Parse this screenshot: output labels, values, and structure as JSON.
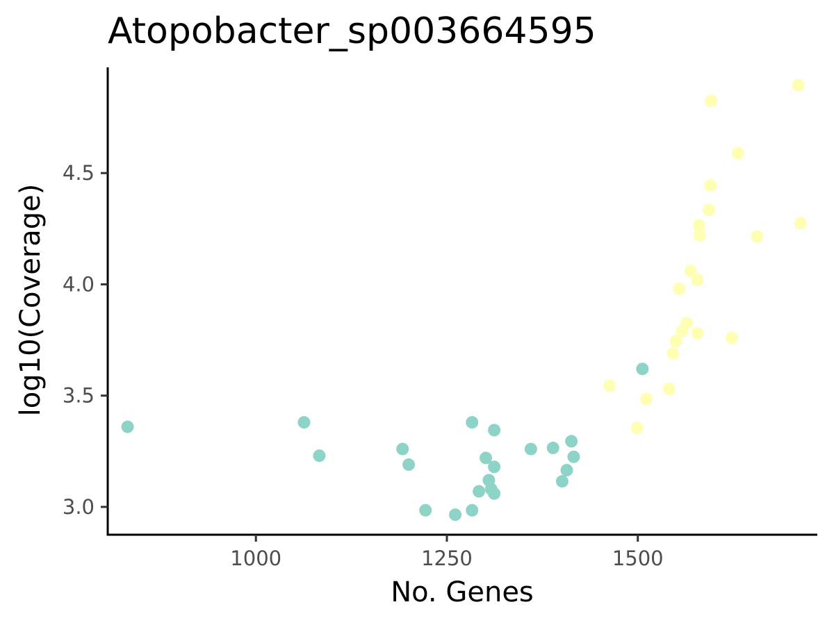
{
  "chart_data": {
    "type": "scatter",
    "title": "Atopobacter_sp003664595",
    "xlabel": "No. Genes",
    "ylabel": "log10(Coverage)",
    "xlim": [
      806,
      1735
    ],
    "ylim": [
      2.875,
      4.975
    ],
    "xticks": [
      1000,
      1250,
      1500
    ],
    "xtick_labels": [
      "1000",
      "1250",
      "1500"
    ],
    "yticks": [
      3.0,
      3.5,
      4.0,
      4.5
    ],
    "ytick_labels": [
      "3.0",
      "3.5",
      "4.0",
      "4.5"
    ],
    "grid": false,
    "legend": "none",
    "series": [
      {
        "color": "#8dd3c7",
        "points": [
          [
            832,
            3.36
          ],
          [
            1063,
            3.38
          ],
          [
            1083,
            3.23
          ],
          [
            1192,
            3.26
          ],
          [
            1200,
            3.19
          ],
          [
            1222,
            2.985
          ],
          [
            1261,
            2.965
          ],
          [
            1283,
            2.985
          ],
          [
            1283,
            3.38
          ],
          [
            1292,
            3.07
          ],
          [
            1301,
            3.22
          ],
          [
            1305,
            3.12
          ],
          [
            1308,
            3.08
          ],
          [
            1312,
            3.06
          ],
          [
            1312,
            3.18
          ],
          [
            1312,
            3.345
          ],
          [
            1360,
            3.26
          ],
          [
            1389,
            3.265
          ],
          [
            1401,
            3.115
          ],
          [
            1407,
            3.165
          ],
          [
            1413,
            3.295
          ],
          [
            1416,
            3.225
          ],
          [
            1506,
            3.62
          ]
        ]
      },
      {
        "color": "#ffffb3",
        "points": [
          [
            1463,
            3.545
          ],
          [
            1499,
            3.355
          ],
          [
            1511,
            3.485
          ],
          [
            1541,
            3.53
          ],
          [
            1546,
            3.69
          ],
          [
            1550,
            3.745
          ],
          [
            1554,
            3.98
          ],
          [
            1558,
            3.79
          ],
          [
            1564,
            3.825
          ],
          [
            1569,
            4.06
          ],
          [
            1578,
            4.02
          ],
          [
            1578,
            3.78
          ],
          [
            1580,
            4.265
          ],
          [
            1581,
            4.22
          ],
          [
            1593,
            4.335
          ],
          [
            1595,
            4.445
          ],
          [
            1596,
            4.825
          ],
          [
            1623,
            3.76
          ],
          [
            1631,
            4.59
          ],
          [
            1656,
            4.215
          ],
          [
            1710,
            4.895
          ],
          [
            1713,
            4.275
          ]
        ]
      }
    ]
  }
}
